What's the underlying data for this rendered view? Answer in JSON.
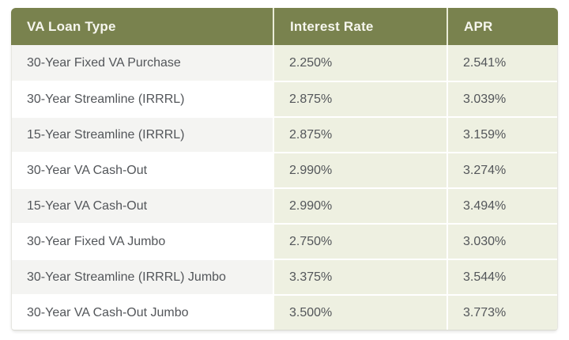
{
  "chart_data": {
    "type": "table",
    "columns": [
      "VA Loan Type",
      "Interest Rate",
      "APR"
    ],
    "rows": [
      {
        "loan_type": "30-Year Fixed VA Purchase",
        "interest_rate": "2.250%",
        "apr": "2.541%"
      },
      {
        "loan_type": "30-Year Streamline (IRRRL)",
        "interest_rate": "2.875%",
        "apr": "3.039%"
      },
      {
        "loan_type": "15-Year Streamline (IRRRL)",
        "interest_rate": "2.875%",
        "apr": "3.159%"
      },
      {
        "loan_type": "30-Year VA Cash-Out",
        "interest_rate": "2.990%",
        "apr": "3.274%"
      },
      {
        "loan_type": "15-Year VA Cash-Out",
        "interest_rate": "2.990%",
        "apr": "3.494%"
      },
      {
        "loan_type": "30-Year Fixed VA Jumbo",
        "interest_rate": "2.750%",
        "apr": "3.030%"
      },
      {
        "loan_type": "30-Year Streamline (IRRRL) Jumbo",
        "interest_rate": "3.375%",
        "apr": "3.544%"
      },
      {
        "loan_type": "30-Year VA Cash-Out Jumbo",
        "interest_rate": "3.500%",
        "apr": "3.773%"
      }
    ]
  },
  "colors": {
    "header_bg": "#79824E",
    "header_text": "#F6F6EE",
    "header_separator": "#E9EBD7",
    "row_alt_bg": "#F4F4F2",
    "row_bg": "#FFFFFF",
    "rate_cell_bg": "#EEF0E1",
    "row_separator": "#FFFFFF",
    "body_text": "#53565A"
  }
}
